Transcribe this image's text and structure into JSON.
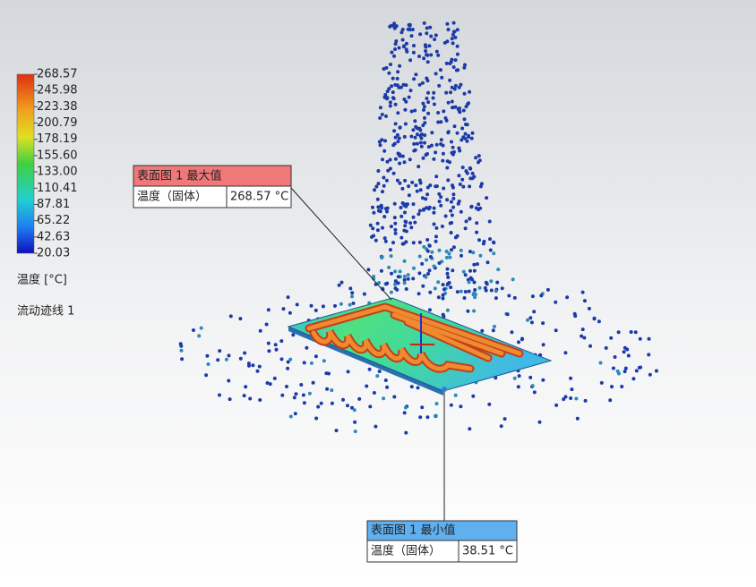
{
  "legend": {
    "ticks": [
      "268.57",
      "245.98",
      "223.38",
      "200.79",
      "178.19",
      "155.60",
      "133.00",
      "110.41",
      "87.81",
      "65.22",
      "42.63",
      "20.03"
    ],
    "label": "温度 [°C]",
    "subtitle": "流动迹线 1"
  },
  "callouts": {
    "max": {
      "title": "表面图 1 最大值",
      "name": "温度（固体）",
      "value": "268.57 °C"
    },
    "min": {
      "title": "表面图 1 最小值",
      "name": "温度（固体）",
      "value": "38.51 °C"
    }
  }
}
